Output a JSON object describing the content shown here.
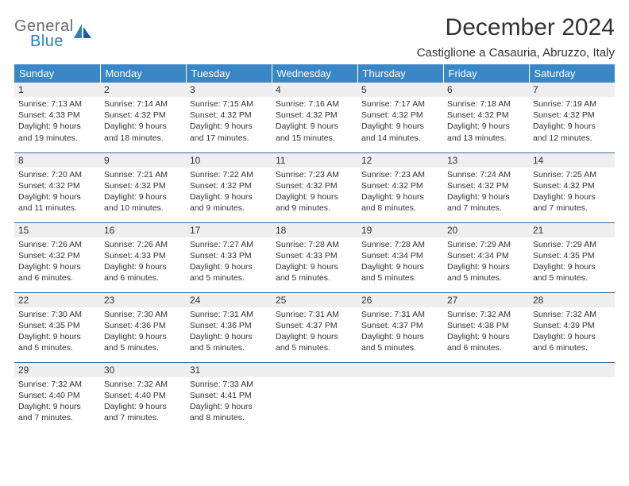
{
  "logo": {
    "line1": "General",
    "line2": "Blue"
  },
  "title": "December 2024",
  "location": "Castiglione a Casauria, Abruzzo, Italy",
  "colors": {
    "header_bg": "#3a87c8",
    "header_text": "#ffffff",
    "daynum_bg": "#eeeeee",
    "row_border": "#3a6fa0",
    "logo_gray": "#6a6a6a",
    "logo_blue": "#2f7ec0",
    "text": "#333333",
    "page_bg": "#ffffff"
  },
  "weekdays": [
    "Sunday",
    "Monday",
    "Tuesday",
    "Wednesday",
    "Thursday",
    "Friday",
    "Saturday"
  ],
  "weeks": [
    [
      {
        "n": "1",
        "sunrise": "7:13 AM",
        "sunset": "4:33 PM",
        "daylight": "9 hours and 19 minutes."
      },
      {
        "n": "2",
        "sunrise": "7:14 AM",
        "sunset": "4:32 PM",
        "daylight": "9 hours and 18 minutes."
      },
      {
        "n": "3",
        "sunrise": "7:15 AM",
        "sunset": "4:32 PM",
        "daylight": "9 hours and 17 minutes."
      },
      {
        "n": "4",
        "sunrise": "7:16 AM",
        "sunset": "4:32 PM",
        "daylight": "9 hours and 15 minutes."
      },
      {
        "n": "5",
        "sunrise": "7:17 AM",
        "sunset": "4:32 PM",
        "daylight": "9 hours and 14 minutes."
      },
      {
        "n": "6",
        "sunrise": "7:18 AM",
        "sunset": "4:32 PM",
        "daylight": "9 hours and 13 minutes."
      },
      {
        "n": "7",
        "sunrise": "7:19 AM",
        "sunset": "4:32 PM",
        "daylight": "9 hours and 12 minutes."
      }
    ],
    [
      {
        "n": "8",
        "sunrise": "7:20 AM",
        "sunset": "4:32 PM",
        "daylight": "9 hours and 11 minutes."
      },
      {
        "n": "9",
        "sunrise": "7:21 AM",
        "sunset": "4:32 PM",
        "daylight": "9 hours and 10 minutes."
      },
      {
        "n": "10",
        "sunrise": "7:22 AM",
        "sunset": "4:32 PM",
        "daylight": "9 hours and 9 minutes."
      },
      {
        "n": "11",
        "sunrise": "7:23 AM",
        "sunset": "4:32 PM",
        "daylight": "9 hours and 9 minutes."
      },
      {
        "n": "12",
        "sunrise": "7:23 AM",
        "sunset": "4:32 PM",
        "daylight": "9 hours and 8 minutes."
      },
      {
        "n": "13",
        "sunrise": "7:24 AM",
        "sunset": "4:32 PM",
        "daylight": "9 hours and 7 minutes."
      },
      {
        "n": "14",
        "sunrise": "7:25 AM",
        "sunset": "4:32 PM",
        "daylight": "9 hours and 7 minutes."
      }
    ],
    [
      {
        "n": "15",
        "sunrise": "7:26 AM",
        "sunset": "4:32 PM",
        "daylight": "9 hours and 6 minutes."
      },
      {
        "n": "16",
        "sunrise": "7:26 AM",
        "sunset": "4:33 PM",
        "daylight": "9 hours and 6 minutes."
      },
      {
        "n": "17",
        "sunrise": "7:27 AM",
        "sunset": "4:33 PM",
        "daylight": "9 hours and 5 minutes."
      },
      {
        "n": "18",
        "sunrise": "7:28 AM",
        "sunset": "4:33 PM",
        "daylight": "9 hours and 5 minutes."
      },
      {
        "n": "19",
        "sunrise": "7:28 AM",
        "sunset": "4:34 PM",
        "daylight": "9 hours and 5 minutes."
      },
      {
        "n": "20",
        "sunrise": "7:29 AM",
        "sunset": "4:34 PM",
        "daylight": "9 hours and 5 minutes."
      },
      {
        "n": "21",
        "sunrise": "7:29 AM",
        "sunset": "4:35 PM",
        "daylight": "9 hours and 5 minutes."
      }
    ],
    [
      {
        "n": "22",
        "sunrise": "7:30 AM",
        "sunset": "4:35 PM",
        "daylight": "9 hours and 5 minutes."
      },
      {
        "n": "23",
        "sunrise": "7:30 AM",
        "sunset": "4:36 PM",
        "daylight": "9 hours and 5 minutes."
      },
      {
        "n": "24",
        "sunrise": "7:31 AM",
        "sunset": "4:36 PM",
        "daylight": "9 hours and 5 minutes."
      },
      {
        "n": "25",
        "sunrise": "7:31 AM",
        "sunset": "4:37 PM",
        "daylight": "9 hours and 5 minutes."
      },
      {
        "n": "26",
        "sunrise": "7:31 AM",
        "sunset": "4:37 PM",
        "daylight": "9 hours and 5 minutes."
      },
      {
        "n": "27",
        "sunrise": "7:32 AM",
        "sunset": "4:38 PM",
        "daylight": "9 hours and 6 minutes."
      },
      {
        "n": "28",
        "sunrise": "7:32 AM",
        "sunset": "4:39 PM",
        "daylight": "9 hours and 6 minutes."
      }
    ],
    [
      {
        "n": "29",
        "sunrise": "7:32 AM",
        "sunset": "4:40 PM",
        "daylight": "9 hours and 7 minutes."
      },
      {
        "n": "30",
        "sunrise": "7:32 AM",
        "sunset": "4:40 PM",
        "daylight": "9 hours and 7 minutes."
      },
      {
        "n": "31",
        "sunrise": "7:33 AM",
        "sunset": "4:41 PM",
        "daylight": "9 hours and 8 minutes."
      },
      null,
      null,
      null,
      null
    ]
  ],
  "labels": {
    "sunrise": "Sunrise:",
    "sunset": "Sunset:",
    "daylight": "Daylight:"
  }
}
